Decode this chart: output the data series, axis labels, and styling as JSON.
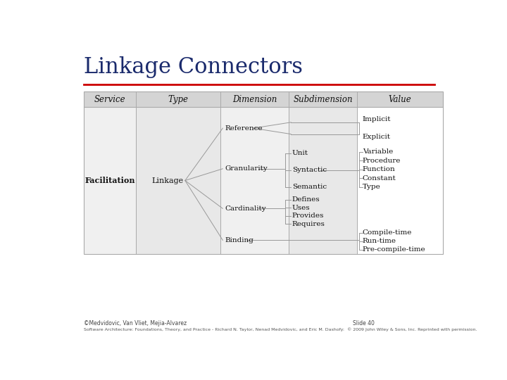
{
  "title": "Linkage Connectors",
  "title_color": "#1a2a6c",
  "title_fontsize": 22,
  "bg_color": "#ffffff",
  "red_line_color": "#cc0000",
  "footer_line1": "©Medvidovic, Van Vliet, Mejia-Alvarez",
  "footer_slide": "Slide 40",
  "footer_line2": "Software Architecture: Foundations, Theory, and Practice - Richard N. Taylor, Nenad Medvidovic, and Eric M. Dashofy:  © 2009 John Wiley & Sons, Inc. Reprinted with permission.",
  "line_color": "#999999",
  "text_color": "#111111",
  "header_color": "#d4d4d4",
  "col1_bg": "#f0f0f0",
  "col2_bg": "#e8e8e8",
  "col3_bg": "#f0f0f0",
  "col4_bg": "#e8e8e8",
  "col5_bg": "#ffffff",
  "table_border": "#aaaaaa"
}
